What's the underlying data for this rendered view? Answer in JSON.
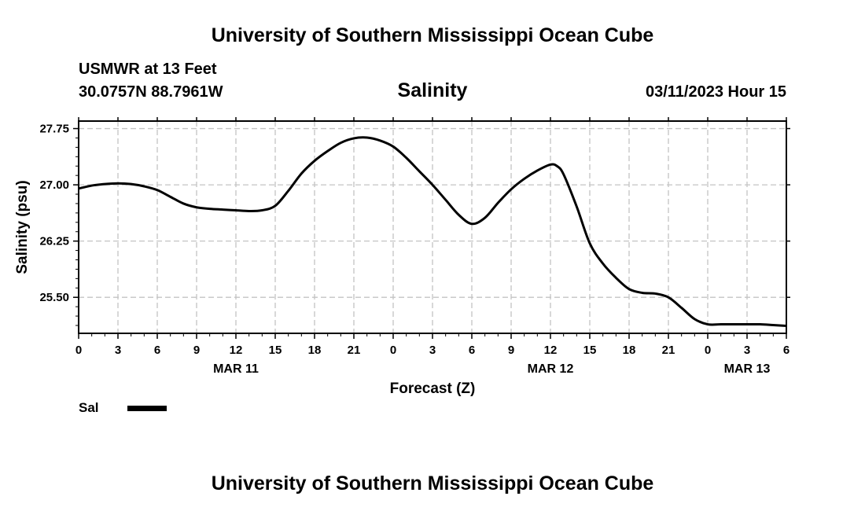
{
  "header": {
    "title": "University of Southern Mississippi Ocean Cube",
    "station": "USMWR at 13 Feet",
    "coordinates": "30.0757N  88.7961W",
    "datetime": "03/11/2023 Hour 15"
  },
  "footer": {
    "title": "University of Southern Mississippi Ocean Cube"
  },
  "legend": {
    "label": "Sal",
    "color": "#000000"
  },
  "chart_data": {
    "type": "line",
    "title": "Salinity",
    "xlabel": "Forecast (Z)",
    "ylabel": "Salinity (psu)",
    "xlim": [
      0,
      54
    ],
    "ylim": [
      25.02,
      27.85
    ],
    "x_ticks": [
      0,
      3,
      6,
      9,
      12,
      15,
      18,
      21,
      24,
      27,
      30,
      33,
      36,
      39,
      42,
      45,
      48,
      51,
      54
    ],
    "x_tick_labels": [
      "0",
      "3",
      "6",
      "9",
      "12",
      "15",
      "18",
      "21",
      "0",
      "3",
      "6",
      "9",
      "12",
      "15",
      "18",
      "21",
      "0",
      "3",
      "6"
    ],
    "y_ticks": [
      25.5,
      26.25,
      27.0,
      27.75
    ],
    "y_tick_labels": [
      "25.50",
      "26.25",
      "27.00",
      "27.75"
    ],
    "date_labels": [
      {
        "x": 12,
        "label": "MAR 11"
      },
      {
        "x": 36,
        "label": "MAR 12"
      },
      {
        "x": 51,
        "label": "MAR 13"
      }
    ],
    "grid": true,
    "series": [
      {
        "name": "Sal",
        "x": [
          0,
          1,
          2,
          3,
          4,
          5,
          6,
          7,
          8,
          9,
          10,
          11,
          12,
          13,
          14,
          15,
          16,
          17,
          18,
          19,
          20,
          21,
          22,
          23,
          24,
          25,
          26,
          27,
          28,
          29,
          30,
          31,
          32,
          33,
          34,
          35,
          36,
          36.5,
          37,
          38,
          39,
          40,
          41,
          42,
          43,
          44,
          45,
          46,
          47,
          48,
          49,
          50,
          51,
          52,
          53,
          54
        ],
        "y": [
          26.95,
          26.99,
          27.01,
          27.02,
          27.01,
          26.98,
          26.93,
          26.84,
          26.75,
          26.7,
          26.68,
          26.67,
          26.66,
          26.65,
          26.66,
          26.72,
          26.92,
          27.15,
          27.32,
          27.45,
          27.56,
          27.62,
          27.63,
          27.59,
          27.51,
          27.36,
          27.18,
          27.0,
          26.8,
          26.6,
          26.48,
          26.56,
          26.76,
          26.94,
          27.08,
          27.19,
          27.27,
          27.25,
          27.14,
          26.71,
          26.22,
          25.95,
          25.76,
          25.61,
          25.56,
          25.55,
          25.5,
          25.36,
          25.21,
          25.14,
          25.14,
          25.14,
          25.14,
          25.14,
          25.13,
          25.12
        ]
      }
    ]
  }
}
